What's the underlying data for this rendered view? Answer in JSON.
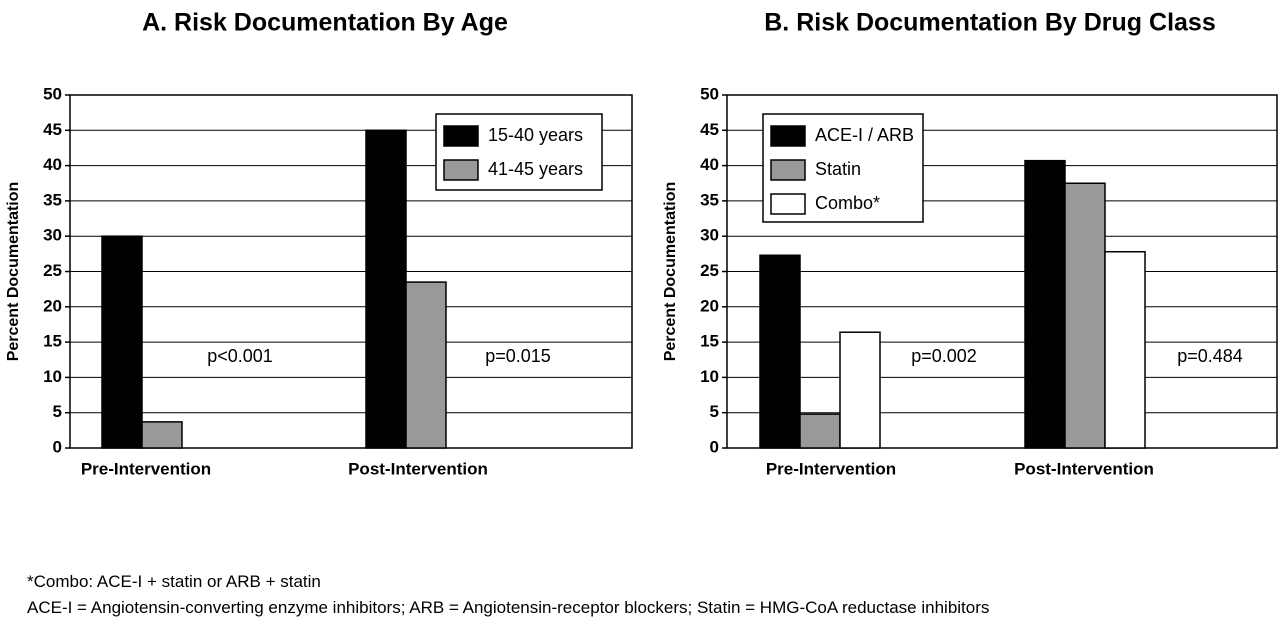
{
  "colors": {
    "black": "#000000",
    "gray": "#999999",
    "white": "#ffffff",
    "grid": "#000000"
  },
  "footnotes": [
    "*Combo: ACE-I + statin or ARB + statin",
    "ACE-I = Angiotensin-converting enzyme inhibitors; ARB = Angiotensin-receptor blockers; Statin = HMG-CoA reductase inhibitors"
  ],
  "chart_data": [
    {
      "type": "bar",
      "title": "A. Risk Documentation By Age",
      "xlabel": "",
      "ylabel": "Percent Documentation",
      "ylim": [
        0,
        50
      ],
      "yticks": [
        0,
        5,
        10,
        15,
        20,
        25,
        30,
        35,
        40,
        45,
        50
      ],
      "grid": true,
      "legend_position": "top-right",
      "categories": [
        "Pre-Intervention",
        "Post-Intervention"
      ],
      "series": [
        {
          "name": "15-40 years",
          "color": "#000000",
          "values": [
            30,
            45
          ]
        },
        {
          "name": "41-45 years",
          "color": "#999999",
          "values": [
            3.7,
            23.5
          ]
        }
      ],
      "annotations": [
        "p<0.001",
        "p=0.015"
      ]
    },
    {
      "type": "bar",
      "title": "B. Risk Documentation By Drug Class",
      "xlabel": "",
      "ylabel": "Percent Documentation",
      "ylim": [
        0,
        50
      ],
      "yticks": [
        0,
        5,
        10,
        15,
        20,
        25,
        30,
        35,
        40,
        45,
        50
      ],
      "grid": true,
      "legend_position": "top-left",
      "categories": [
        "Pre-Intervention",
        "Post-Intervention"
      ],
      "series": [
        {
          "name": "ACE-I / ARB",
          "color": "#000000",
          "values": [
            27.3,
            40.7
          ]
        },
        {
          "name": "Statin",
          "color": "#999999",
          "values": [
            4.8,
            37.5
          ]
        },
        {
          "name": "Combo*",
          "color": "#ffffff",
          "values": [
            16.4,
            27.8
          ]
        }
      ],
      "annotations": [
        "p=0.002",
        "p=0.484"
      ]
    }
  ]
}
